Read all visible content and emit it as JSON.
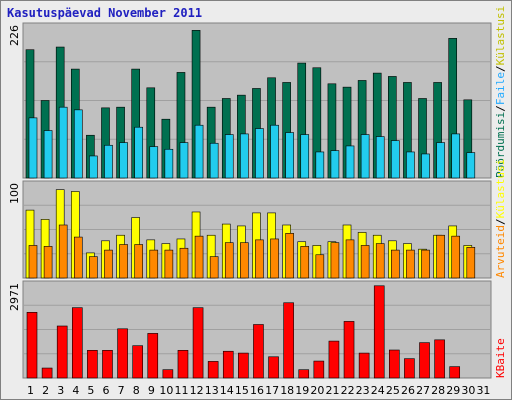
{
  "chart_data": [
    {
      "type": "bar",
      "title": "Kasutuspäevad November 2011",
      "categories": [
        "1",
        "2",
        "3",
        "4",
        "5",
        "6",
        "7",
        "8",
        "9",
        "10",
        "11",
        "12",
        "13",
        "14",
        "15",
        "16",
        "17",
        "18",
        "19",
        "20",
        "21",
        "22",
        "23",
        "24",
        "25",
        "26",
        "27",
        "28",
        "29",
        "30",
        "31"
      ],
      "weekend_days": [
        "5",
        "6",
        "12",
        "13",
        "19",
        "20",
        "26",
        "27"
      ],
      "y_max_label": "226",
      "ylim": [
        0,
        226
      ],
      "series": [
        {
          "name": "Pöördumisi",
          "color": "#007050",
          "values": [
            192,
            116,
            196,
            163,
            64,
            105,
            106,
            163,
            135,
            88,
            158,
            221,
            106,
            119,
            124,
            134,
            150,
            143,
            172,
            165,
            141,
            136,
            146,
            157,
            152,
            143,
            119,
            143,
            209,
            117,
            0
          ]
        },
        {
          "name": "Faile",
          "color": "#22ccee",
          "values": [
            90,
            71,
            106,
            102,
            33,
            49,
            53,
            76,
            47,
            43,
            53,
            79,
            52,
            65,
            66,
            74,
            79,
            68,
            65,
            39,
            41,
            48,
            65,
            62,
            56,
            39,
            36,
            53,
            66,
            38,
            0
          ]
        }
      ],
      "side_label": "Pöördumisi / Faile / Külastusi",
      "side_label_colors": {
        "hits": "#007050",
        "files": "#22aaff",
        "visits": "#c0c000"
      }
    },
    {
      "type": "bar",
      "categories": [
        "1",
        "2",
        "3",
        "4",
        "5",
        "6",
        "7",
        "8",
        "9",
        "10",
        "11",
        "12",
        "13",
        "14",
        "15",
        "16",
        "17",
        "18",
        "19",
        "20",
        "21",
        "22",
        "23",
        "24",
        "25",
        "26",
        "27",
        "28",
        "29",
        "30",
        "31"
      ],
      "y_max_label": "100",
      "ylim": [
        0,
        100
      ],
      "series": [
        {
          "name": "Külastusi",
          "color": "#ffff00",
          "values": [
            73,
            63,
            95,
            93,
            27,
            40,
            46,
            65,
            41,
            37,
            42,
            71,
            46,
            58,
            56,
            70,
            70,
            57,
            39,
            35,
            39,
            57,
            49,
            46,
            40,
            37,
            31,
            46,
            56,
            35,
            0
          ]
        },
        {
          "name": "Arvuteid",
          "color": "#ff8800",
          "values": [
            35,
            34,
            57,
            44,
            23,
            30,
            36,
            36,
            30,
            30,
            32,
            45,
            23,
            38,
            38,
            41,
            42,
            48,
            34,
            25,
            38,
            41,
            35,
            37,
            30,
            30,
            30,
            46,
            45,
            33,
            0
          ]
        }
      ],
      "side_label": "Arvuteid / Külastusi"
    },
    {
      "type": "bar",
      "categories": [
        "1",
        "2",
        "3",
        "4",
        "5",
        "6",
        "7",
        "8",
        "9",
        "10",
        "11",
        "12",
        "13",
        "14",
        "15",
        "16",
        "17",
        "18",
        "19",
        "20",
        "21",
        "22",
        "23",
        "24",
        "25",
        "26",
        "27",
        "28",
        "29",
        "30",
        "31"
      ],
      "y_max_label": "2971",
      "ylim": [
        0,
        2971
      ],
      "series": [
        {
          "name": "KBaite",
          "color": "#ff0000",
          "values": [
            2098,
            318,
            1661,
            2247,
            884,
            884,
            1572,
            1032,
            1425,
            266,
            884,
            2246,
            530,
            855,
            796,
            1709,
            678,
            2404,
            265,
            541,
            1179,
            1808,
            796,
            2946,
            894,
            618,
            1130,
            1219,
            363,
            0,
            0
          ]
        }
      ],
      "side_label": "KBaite"
    }
  ]
}
